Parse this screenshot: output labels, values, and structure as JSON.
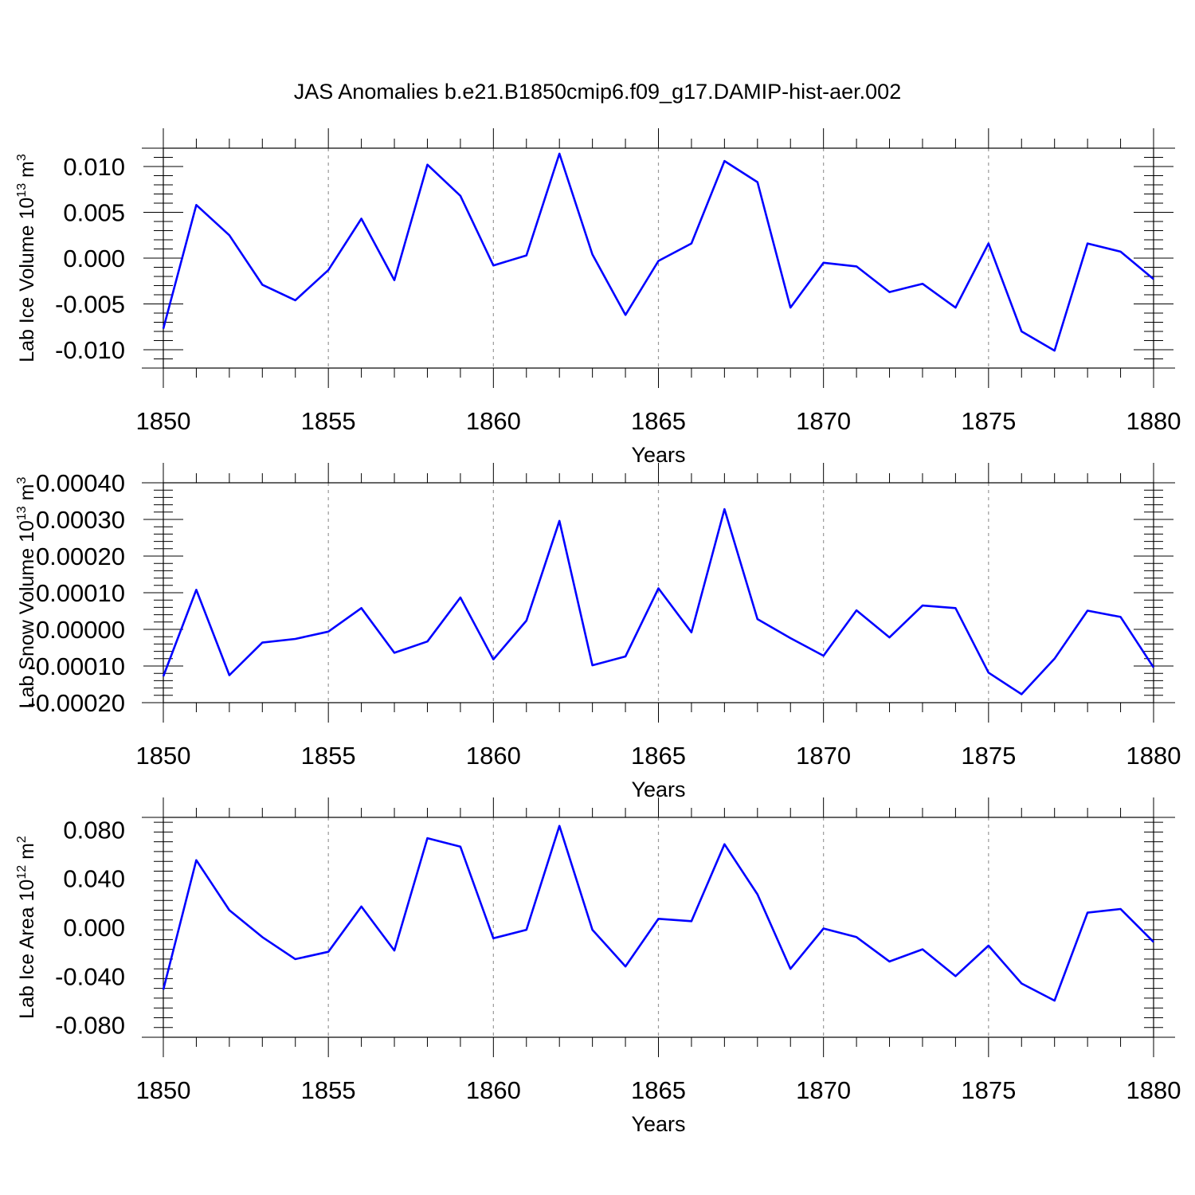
{
  "figure": {
    "title": "JAS Anomalies b.e21.B1850cmip6.f09_g17.DAMIP-hist-aer.002"
  },
  "colors": {
    "series": "#0000ff",
    "grid": "#999999",
    "axes": "#000000"
  },
  "chart_data": [
    {
      "type": "line",
      "ylabel": {
        "main": "Lab Ice Volume 10",
        "sup": "13",
        "unit": " m",
        "unit_sup": "3"
      },
      "xlabel": "Years",
      "xlim": [
        1850,
        1880
      ],
      "ylim": [
        -0.012,
        0.012
      ],
      "grid": "vertical dashed at major x ticks",
      "x_ticks": [
        "1850",
        "1855",
        "1860",
        "1865",
        "1870",
        "1875",
        "1880"
      ],
      "y_ticks": [
        {
          "value": 0.01,
          "label": "0.010"
        },
        {
          "value": 0.005,
          "label": "0.005"
        },
        {
          "value": 0,
          "label": "0.000"
        },
        {
          "value": -0.005,
          "label": "-0.005"
        },
        {
          "value": -0.01,
          "label": "-0.010"
        }
      ],
      "x": [
        1850,
        1851,
        1852,
        1853,
        1854,
        1855,
        1856,
        1857,
        1858,
        1859,
        1860,
        1861,
        1862,
        1863,
        1864,
        1865,
        1866,
        1867,
        1868,
        1869,
        1870,
        1871,
        1872,
        1873,
        1874,
        1875,
        1876,
        1877,
        1878,
        1879,
        1880
      ],
      "values": [
        -0.0077,
        0.0058,
        0.0025,
        -0.0029,
        -0.0046,
        -0.0013,
        0.0043,
        -0.0024,
        0.0102,
        0.0068,
        -0.0008,
        0.0003,
        0.0114,
        0.0004,
        -0.0062,
        -0.0003,
        0.0016,
        0.0106,
        0.0083,
        -0.0054,
        -0.0005,
        -0.0009,
        -0.0037,
        -0.0028,
        -0.0054,
        0.0016,
        -0.008,
        -0.0101,
        0.0016,
        0.0007,
        -0.0023
      ]
    },
    {
      "type": "line",
      "ylabel": {
        "main": "Lab Snow Volume 10",
        "sup": "13",
        "unit": " m",
        "unit_sup": "3"
      },
      "xlabel": "Years",
      "xlim": [
        1850,
        1880
      ],
      "ylim": [
        -0.0002,
        0.0004
      ],
      "grid": "vertical dashed at major x ticks",
      "x_ticks": [
        "1850",
        "1855",
        "1860",
        "1865",
        "1870",
        "1875",
        "1880"
      ],
      "y_ticks": [
        {
          "value": 0.0004,
          "label": "0.00040"
        },
        {
          "value": 0.0003,
          "label": "0.00030"
        },
        {
          "value": 0.0002,
          "label": "0.00020"
        },
        {
          "value": 0.0001,
          "label": "0.00010"
        },
        {
          "value": 0,
          "label": "0.00000"
        },
        {
          "value": -0.0001,
          "label": "-0.00010"
        },
        {
          "value": -0.0002,
          "label": "-0.00020"
        }
      ],
      "x": [
        1850,
        1851,
        1852,
        1853,
        1854,
        1855,
        1856,
        1857,
        1858,
        1859,
        1860,
        1861,
        1862,
        1863,
        1864,
        1865,
        1866,
        1867,
        1868,
        1869,
        1870,
        1871,
        1872,
        1873,
        1874,
        1875,
        1876,
        1877,
        1878,
        1879,
        1880
      ],
      "values": [
        -0.000128,
        0.000108,
        -0.000125,
        -3.6e-05,
        -2.6e-05,
        -6e-06,
        5.8e-05,
        -6.4e-05,
        -3.3e-05,
        8.7e-05,
        -8.2e-05,
        2.4e-05,
        0.000296,
        -9.8e-05,
        -7.4e-05,
        0.000112,
        -8e-06,
        0.000328,
        2.8e-05,
        -2.4e-05,
        -7.2e-05,
        5.2e-05,
        -2.2e-05,
        6.5e-05,
        5.8e-05,
        -0.000118,
        -0.000177,
        -8e-05,
        5.1e-05,
        3.4e-05,
        -0.000104
      ]
    },
    {
      "type": "line",
      "ylabel": {
        "main": "Lab Ice Area 10",
        "sup": "12",
        "unit": " m",
        "unit_sup": "2"
      },
      "xlabel": "Years",
      "xlim": [
        1850,
        1880
      ],
      "ylim": [
        -0.09,
        0.09
      ],
      "grid": "vertical dashed at major x ticks",
      "x_ticks": [
        "1850",
        "1855",
        "1860",
        "1865",
        "1870",
        "1875",
        "1880"
      ],
      "y_ticks": [
        {
          "value": 0.08,
          "label": "0.080"
        },
        {
          "value": 0.04,
          "label": "0.040"
        },
        {
          "value": 0,
          "label": "0.000"
        },
        {
          "value": -0.04,
          "label": "-0.040"
        },
        {
          "value": -0.08,
          "label": "-0.080"
        }
      ],
      "x": [
        1850,
        1851,
        1852,
        1853,
        1854,
        1855,
        1856,
        1857,
        1858,
        1859,
        1860,
        1861,
        1862,
        1863,
        1864,
        1865,
        1866,
        1867,
        1868,
        1869,
        1870,
        1871,
        1872,
        1873,
        1874,
        1875,
        1876,
        1877,
        1878,
        1879,
        1880
      ],
      "values": [
        -0.051,
        0.055,
        0.014,
        -0.008,
        -0.026,
        -0.02,
        0.017,
        -0.019,
        0.073,
        0.066,
        -0.009,
        -0.002,
        0.083,
        -0.002,
        -0.032,
        0.007,
        0.005,
        0.068,
        0.027,
        -0.034,
        -0.001,
        -0.008,
        -0.028,
        -0.018,
        -0.04,
        -0.015,
        -0.046,
        -0.06,
        0.012,
        0.015,
        -0.012
      ]
    }
  ]
}
